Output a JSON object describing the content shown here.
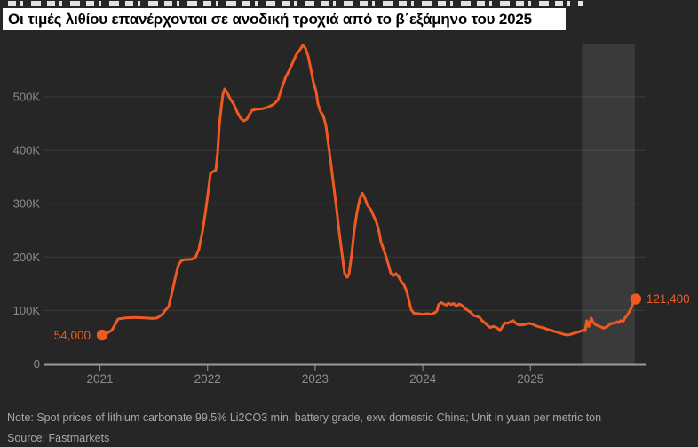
{
  "title_overlay": {
    "text": "Οι τιμές λιθίου επανέρχονται σε ανοδική τροχιά από το β΄εξάμηνο του 2025"
  },
  "footer": {
    "note": "Note: Spot prices of lithium carbonate 99.5% Li2CO3 min, battery grade, exw domestic China; Unit in yuan per metric ton",
    "source": "Source: Fastmarkets"
  },
  "colors": {
    "background": "#262626",
    "accent_orange": "#ee5a21",
    "highlight_band": "#3a3a3a",
    "gridline": "rgba(255,255,255,0.10)",
    "axis_line": "#9a9a9a",
    "tick": "#848484",
    "axis_label": "#8d8d8d",
    "footer_text": "#a6a6a6",
    "overlay_bg": "#ffffff",
    "overlay_text": "#000000"
  },
  "chart_data": {
    "type": "line",
    "title": "Οι τιμές λιθίου επανέρχονται σε ανοδική τροχιά από το β΄εξάμηνο του 2025",
    "xlabel": "",
    "ylabel": "",
    "values_unit": "thousand yuan per metric ton",
    "xlim": [
      2020.48,
      2026.07
    ],
    "ylim": [
      0,
      598
    ],
    "grid": "horizontal",
    "legend": "none",
    "y_ticks": [
      {
        "label": "0",
        "value": 0
      },
      {
        "label": "100K",
        "value": 100
      },
      {
        "label": "200K",
        "value": 200
      },
      {
        "label": "300K",
        "value": 300
      },
      {
        "label": "400K",
        "value": 400
      },
      {
        "label": "500K",
        "value": 500
      }
    ],
    "x_ticks": [
      {
        "label": "2021",
        "value": 2021
      },
      {
        "label": "2022",
        "value": 2022
      },
      {
        "label": "2023",
        "value": 2023
      },
      {
        "label": "2024",
        "value": 2024
      },
      {
        "label": "2025",
        "value": 2025
      }
    ],
    "highlight_band": {
      "from": 2025.48,
      "to": 2025.97,
      "meaning": "H2 2025"
    },
    "start_point": {
      "label": "54,000",
      "value": 54
    },
    "end_point": {
      "label": "121,400",
      "value": 121.4
    },
    "series": [
      {
        "name": "Lithium carbonate 99.5% spot price, China",
        "color": "#ee5a21",
        "points": [
          [
            2021.021,
            54
          ],
          [
            2021.062,
            57
          ],
          [
            2021.111,
            63
          ],
          [
            2021.169,
            84
          ],
          [
            2021.235,
            86
          ],
          [
            2021.326,
            87
          ],
          [
            2021.417,
            86
          ],
          [
            2021.491,
            85
          ],
          [
            2021.532,
            86
          ],
          [
            2021.582,
            93
          ],
          [
            2021.606,
            100
          ],
          [
            2021.639,
            107
          ],
          [
            2021.672,
            135
          ],
          [
            2021.705,
            165
          ],
          [
            2021.73,
            185
          ],
          [
            2021.755,
            193
          ],
          [
            2021.788,
            195
          ],
          [
            2021.854,
            196
          ],
          [
            2021.887,
            199
          ],
          [
            2021.92,
            215
          ],
          [
            2021.953,
            248
          ],
          [
            2021.978,
            280
          ],
          [
            2022.003,
            318
          ],
          [
            2022.027,
            357
          ],
          [
            2022.052,
            360
          ],
          [
            2022.077,
            363
          ],
          [
            2022.093,
            395
          ],
          [
            2022.11,
            448
          ],
          [
            2022.126,
            478
          ],
          [
            2022.143,
            505
          ],
          [
            2022.159,
            515
          ],
          [
            2022.184,
            507
          ],
          [
            2022.209,
            497
          ],
          [
            2022.242,
            487
          ],
          [
            2022.275,
            472
          ],
          [
            2022.308,
            460
          ],
          [
            2022.332,
            455
          ],
          [
            2022.365,
            458
          ],
          [
            2022.39,
            468
          ],
          [
            2022.415,
            475
          ],
          [
            2022.464,
            477
          ],
          [
            2022.514,
            478
          ],
          [
            2022.563,
            481
          ],
          [
            2022.613,
            486
          ],
          [
            2022.654,
            494
          ],
          [
            2022.687,
            515
          ],
          [
            2022.728,
            538
          ],
          [
            2022.761,
            550
          ],
          [
            2022.794,
            565
          ],
          [
            2022.827,
            580
          ],
          [
            2022.861,
            589
          ],
          [
            2022.885,
            597
          ],
          [
            2022.91,
            591
          ],
          [
            2022.935,
            576
          ],
          [
            2022.959,
            553
          ],
          [
            2022.984,
            527
          ],
          [
            2023.009,
            510
          ],
          [
            2023.025,
            488
          ],
          [
            2023.05,
            472
          ],
          [
            2023.075,
            465
          ],
          [
            2023.1,
            446
          ],
          [
            2023.124,
            410
          ],
          [
            2023.149,
            370
          ],
          [
            2023.174,
            330
          ],
          [
            2023.199,
            290
          ],
          [
            2023.223,
            248
          ],
          [
            2023.248,
            208
          ],
          [
            2023.273,
            170
          ],
          [
            2023.297,
            162
          ],
          [
            2023.314,
            168
          ],
          [
            2023.339,
            205
          ],
          [
            2023.363,
            250
          ],
          [
            2023.388,
            283
          ],
          [
            2023.413,
            308
          ],
          [
            2023.438,
            320
          ],
          [
            2023.462,
            310
          ],
          [
            2023.487,
            297
          ],
          [
            2023.52,
            288
          ],
          [
            2023.545,
            276
          ],
          [
            2023.57,
            265
          ],
          [
            2023.594,
            247
          ],
          [
            2023.611,
            228
          ],
          [
            2023.627,
            219
          ],
          [
            2023.652,
            205
          ],
          [
            2023.677,
            188
          ],
          [
            2023.702,
            170
          ],
          [
            2023.726,
            165
          ],
          [
            2023.751,
            169
          ],
          [
            2023.776,
            163
          ],
          [
            2023.801,
            154
          ],
          [
            2023.825,
            148
          ],
          [
            2023.85,
            136
          ],
          [
            2023.875,
            116
          ],
          [
            2023.891,
            102
          ],
          [
            2023.916,
            95
          ],
          [
            2023.957,
            94
          ],
          [
            2023.999,
            93
          ],
          [
            2024.04,
            94
          ],
          [
            2024.081,
            93
          ],
          [
            2024.114,
            96
          ],
          [
            2024.131,
            99
          ],
          [
            2024.147,
            111
          ],
          [
            2024.172,
            115
          ],
          [
            2024.197,
            112
          ],
          [
            2024.221,
            110
          ],
          [
            2024.238,
            114
          ],
          [
            2024.263,
            111
          ],
          [
            2024.287,
            113
          ],
          [
            2024.312,
            108
          ],
          [
            2024.337,
            112
          ],
          [
            2024.362,
            110
          ],
          [
            2024.386,
            105
          ],
          [
            2024.419,
            100
          ],
          [
            2024.444,
            97
          ],
          [
            2024.469,
            91
          ],
          [
            2024.502,
            89
          ],
          [
            2024.527,
            87
          ],
          [
            2024.551,
            81
          ],
          [
            2024.576,
            77
          ],
          [
            2024.601,
            72
          ],
          [
            2024.626,
            68
          ],
          [
            2024.65,
            70
          ],
          [
            2024.675,
            69
          ],
          [
            2024.7,
            66
          ],
          [
            2024.716,
            62
          ],
          [
            2024.741,
            70
          ],
          [
            2024.766,
            77
          ],
          [
            2024.79,
            76
          ],
          [
            2024.815,
            79
          ],
          [
            2024.84,
            81
          ],
          [
            2024.865,
            76
          ],
          [
            2024.889,
            73
          ],
          [
            2024.922,
            73
          ],
          [
            2024.955,
            74
          ],
          [
            2024.988,
            76
          ],
          [
            2025.021,
            74
          ],
          [
            2025.054,
            71
          ],
          [
            2025.087,
            69
          ],
          [
            2025.12,
            68
          ],
          [
            2025.153,
            65
          ],
          [
            2025.186,
            63
          ],
          [
            2025.219,
            61
          ],
          [
            2025.252,
            59
          ],
          [
            2025.285,
            57
          ],
          [
            2025.318,
            55
          ],
          [
            2025.351,
            54
          ],
          [
            2025.384,
            56
          ],
          [
            2025.417,
            58
          ],
          [
            2025.45,
            60
          ],
          [
            2025.475,
            62
          ],
          [
            2025.491,
            63
          ],
          [
            2025.508,
            62
          ],
          [
            2025.524,
            81
          ],
          [
            2025.541,
            70
          ],
          [
            2025.565,
            86
          ],
          [
            2025.582,
            78
          ],
          [
            2025.607,
            73
          ],
          [
            2025.631,
            71
          ],
          [
            2025.656,
            69
          ],
          [
            2025.681,
            67
          ],
          [
            2025.706,
            69
          ],
          [
            2025.73,
            73
          ],
          [
            2025.755,
            76
          ],
          [
            2025.78,
            76
          ],
          [
            2025.805,
            79
          ],
          [
            2025.821,
            77
          ],
          [
            2025.838,
            81
          ],
          [
            2025.862,
            80
          ],
          [
            2025.879,
            86
          ],
          [
            2025.904,
            93
          ],
          [
            2025.92,
            98
          ],
          [
            2025.937,
            105
          ],
          [
            2025.953,
            113
          ],
          [
            2025.978,
            121.4
          ]
        ]
      }
    ]
  }
}
